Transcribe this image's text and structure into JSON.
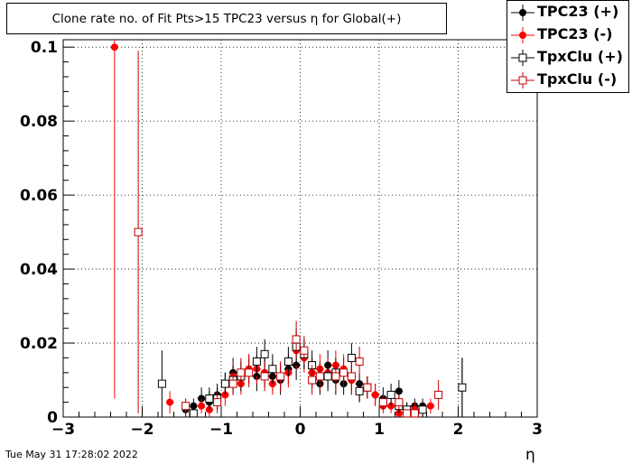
{
  "title": "Clone rate no. of Fit Pts>15 TPC23 versus η for Global(+)",
  "timestamp": "Tue May 31 17:28:02 2022",
  "legend": [
    {
      "label": "TPC23 (+)",
      "color": "#000000",
      "marker": "filled-circle"
    },
    {
      "label": "TPC23 (-)",
      "color": "#ff0000",
      "marker": "filled-circle"
    },
    {
      "label": "TpxClu (+)",
      "color": "#000000",
      "marker": "open-square"
    },
    {
      "label": "TpxClu (-)",
      "color": "#c00000",
      "marker": "open-square"
    }
  ],
  "chart_data": {
    "type": "scatter",
    "title": "Clone rate no. of Fit Pts>15 TPC23 versus η for Global(+)",
    "xlabel": "η",
    "ylabel": "",
    "xlim": [
      -3,
      3
    ],
    "ylim": [
      0,
      0.102
    ],
    "x_ticks": [
      -3,
      -2,
      -1,
      0,
      1,
      2,
      3
    ],
    "y_ticks": [
      0,
      0.02,
      0.04,
      0.06,
      0.08,
      0.1
    ],
    "grid": true,
    "legend_position": "top-right",
    "series": [
      {
        "name": "TPC23 (+)",
        "color": "#000000",
        "marker": "filled-circle",
        "points": [
          {
            "x": -1.45,
            "y": 0.002,
            "err": 0.002
          },
          {
            "x": -1.35,
            "y": 0.003,
            "err": 0.002
          },
          {
            "x": -1.25,
            "y": 0.005,
            "err": 0.003
          },
          {
            "x": -1.15,
            "y": 0.004,
            "err": 0.003
          },
          {
            "x": -1.05,
            "y": 0.006,
            "err": 0.003
          },
          {
            "x": -0.95,
            "y": 0.009,
            "err": 0.003
          },
          {
            "x": -0.85,
            "y": 0.012,
            "err": 0.004
          },
          {
            "x": -0.75,
            "y": 0.011,
            "err": 0.004
          },
          {
            "x": -0.65,
            "y": 0.013,
            "err": 0.004
          },
          {
            "x": -0.55,
            "y": 0.011,
            "err": 0.004
          },
          {
            "x": -0.45,
            "y": 0.012,
            "err": 0.004
          },
          {
            "x": -0.35,
            "y": 0.011,
            "err": 0.004
          },
          {
            "x": -0.25,
            "y": 0.01,
            "err": 0.004
          },
          {
            "x": -0.15,
            "y": 0.013,
            "err": 0.004
          },
          {
            "x": -0.05,
            "y": 0.014,
            "err": 0.004
          },
          {
            "x": 0.05,
            "y": 0.017,
            "err": 0.004
          },
          {
            "x": 0.15,
            "y": 0.012,
            "err": 0.004
          },
          {
            "x": 0.25,
            "y": 0.009,
            "err": 0.003
          },
          {
            "x": 0.35,
            "y": 0.014,
            "err": 0.004
          },
          {
            "x": 0.45,
            "y": 0.01,
            "err": 0.004
          },
          {
            "x": 0.55,
            "y": 0.009,
            "err": 0.003
          },
          {
            "x": 0.65,
            "y": 0.01,
            "err": 0.004
          },
          {
            "x": 0.75,
            "y": 0.009,
            "err": 0.003
          },
          {
            "x": 0.85,
            "y": 0.008,
            "err": 0.003
          },
          {
            "x": 0.95,
            "y": 0.006,
            "err": 0.003
          },
          {
            "x": 1.05,
            "y": 0.005,
            "err": 0.003
          },
          {
            "x": 1.25,
            "y": 0.007,
            "err": 0.003
          },
          {
            "x": 1.35,
            "y": 0.002,
            "err": 0.002
          },
          {
            "x": 1.45,
            "y": 0.003,
            "err": 0.002
          },
          {
            "x": 1.55,
            "y": 0.003,
            "err": 0.002
          },
          {
            "x": 2.05,
            "y": 0.008,
            "err": 0.008
          }
        ]
      },
      {
        "name": "TPC23 (-)",
        "color": "#ff0000",
        "marker": "filled-circle",
        "points": [
          {
            "x": -2.35,
            "y": 0.1,
            "err": 0.095
          },
          {
            "x": -1.65,
            "y": 0.004,
            "err": 0.003
          },
          {
            "x": -1.45,
            "y": 0.003,
            "err": 0.002
          },
          {
            "x": -1.35,
            "y": 0.001,
            "err": 0.001
          },
          {
            "x": -1.25,
            "y": 0.003,
            "err": 0.002
          },
          {
            "x": -1.15,
            "y": 0.002,
            "err": 0.002
          },
          {
            "x": -1.05,
            "y": 0.005,
            "err": 0.003
          },
          {
            "x": -0.95,
            "y": 0.006,
            "err": 0.003
          },
          {
            "x": -0.85,
            "y": 0.011,
            "err": 0.004
          },
          {
            "x": -0.75,
            "y": 0.009,
            "err": 0.003
          },
          {
            "x": -0.65,
            "y": 0.013,
            "err": 0.004
          },
          {
            "x": -0.55,
            "y": 0.013,
            "err": 0.004
          },
          {
            "x": -0.45,
            "y": 0.012,
            "err": 0.004
          },
          {
            "x": -0.35,
            "y": 0.009,
            "err": 0.003
          },
          {
            "x": -0.25,
            "y": 0.011,
            "err": 0.004
          },
          {
            "x": -0.15,
            "y": 0.012,
            "err": 0.004
          },
          {
            "x": -0.05,
            "y": 0.018,
            "err": 0.005
          },
          {
            "x": 0.05,
            "y": 0.016,
            "err": 0.004
          },
          {
            "x": 0.15,
            "y": 0.012,
            "err": 0.004
          },
          {
            "x": 0.25,
            "y": 0.013,
            "err": 0.004
          },
          {
            "x": 0.35,
            "y": 0.012,
            "err": 0.004
          },
          {
            "x": 0.45,
            "y": 0.014,
            "err": 0.004
          },
          {
            "x": 0.55,
            "y": 0.013,
            "err": 0.004
          },
          {
            "x": 0.65,
            "y": 0.01,
            "err": 0.004
          },
          {
            "x": 0.75,
            "y": 0.007,
            "err": 0.003
          },
          {
            "x": 0.85,
            "y": 0.008,
            "err": 0.003
          },
          {
            "x": 0.95,
            "y": 0.006,
            "err": 0.003
          },
          {
            "x": 1.05,
            "y": 0.003,
            "err": 0.002
          },
          {
            "x": 1.15,
            "y": 0.003,
            "err": 0.002
          },
          {
            "x": 1.25,
            "y": 0.001,
            "err": 0.001
          },
          {
            "x": 1.35,
            "y": 0.001,
            "err": 0.001
          },
          {
            "x": 1.45,
            "y": 0.002,
            "err": 0.002
          },
          {
            "x": 1.55,
            "y": 0.002,
            "err": 0.002
          },
          {
            "x": 1.65,
            "y": 0.003,
            "err": 0.002
          }
        ]
      },
      {
        "name": "TpxClu (+)",
        "color": "#000000",
        "marker": "open-square",
        "points": [
          {
            "x": -1.75,
            "y": 0.009,
            "err": 0.009
          },
          {
            "x": -1.35,
            "y": 0.001,
            "err": 0.001
          },
          {
            "x": -1.15,
            "y": 0.005,
            "err": 0.003
          },
          {
            "x": -1.05,
            "y": 0.005,
            "err": 0.003
          },
          {
            "x": -0.95,
            "y": 0.009,
            "err": 0.003
          },
          {
            "x": -0.85,
            "y": 0.01,
            "err": 0.004
          },
          {
            "x": -0.75,
            "y": 0.011,
            "err": 0.004
          },
          {
            "x": -0.55,
            "y": 0.015,
            "err": 0.004
          },
          {
            "x": -0.45,
            "y": 0.017,
            "err": 0.004
          },
          {
            "x": -0.35,
            "y": 0.013,
            "err": 0.004
          },
          {
            "x": -0.15,
            "y": 0.015,
            "err": 0.004
          },
          {
            "x": -0.05,
            "y": 0.019,
            "err": 0.005
          },
          {
            "x": 0.05,
            "y": 0.017,
            "err": 0.004
          },
          {
            "x": 0.15,
            "y": 0.014,
            "err": 0.004
          },
          {
            "x": 0.25,
            "y": 0.011,
            "err": 0.004
          },
          {
            "x": 0.35,
            "y": 0.011,
            "err": 0.004
          },
          {
            "x": 0.45,
            "y": 0.012,
            "err": 0.004
          },
          {
            "x": 0.65,
            "y": 0.016,
            "err": 0.004
          },
          {
            "x": 0.75,
            "y": 0.007,
            "err": 0.003
          },
          {
            "x": 0.85,
            "y": 0.008,
            "err": 0.003
          },
          {
            "x": 1.05,
            "y": 0.004,
            "err": 0.002
          },
          {
            "x": 1.15,
            "y": 0.006,
            "err": 0.003
          },
          {
            "x": 1.25,
            "y": 0.003,
            "err": 0.002
          },
          {
            "x": 1.35,
            "y": 0.002,
            "err": 0.002
          },
          {
            "x": 1.45,
            "y": 0.001,
            "err": 0.001
          },
          {
            "x": 1.55,
            "y": 0.002,
            "err": 0.002
          },
          {
            "x": 2.05,
            "y": 0.008,
            "err": 0.008
          }
        ]
      },
      {
        "name": "TpxClu (-)",
        "color": "#c00000",
        "marker": "open-square",
        "points": [
          {
            "x": -2.05,
            "y": 0.05,
            "err": 0.049
          },
          {
            "x": -1.45,
            "y": 0.003,
            "err": 0.002
          },
          {
            "x": -1.05,
            "y": 0.004,
            "err": 0.003
          },
          {
            "x": -0.85,
            "y": 0.009,
            "err": 0.003
          },
          {
            "x": -0.75,
            "y": 0.012,
            "err": 0.004
          },
          {
            "x": -0.65,
            "y": 0.012,
            "err": 0.004
          },
          {
            "x": -0.45,
            "y": 0.011,
            "err": 0.004
          },
          {
            "x": -0.25,
            "y": 0.011,
            "err": 0.004
          },
          {
            "x": -0.05,
            "y": 0.021,
            "err": 0.005
          },
          {
            "x": 0.05,
            "y": 0.018,
            "err": 0.004
          },
          {
            "x": 0.15,
            "y": 0.01,
            "err": 0.004
          },
          {
            "x": 0.25,
            "y": 0.011,
            "err": 0.004
          },
          {
            "x": 0.45,
            "y": 0.011,
            "err": 0.004
          },
          {
            "x": 0.55,
            "y": 0.012,
            "err": 0.004
          },
          {
            "x": 0.65,
            "y": 0.011,
            "err": 0.004
          },
          {
            "x": 0.75,
            "y": 0.015,
            "err": 0.004
          },
          {
            "x": 0.85,
            "y": 0.008,
            "err": 0.003
          },
          {
            "x": 1.05,
            "y": 0.004,
            "err": 0.002
          },
          {
            "x": 1.25,
            "y": 0.004,
            "err": 0.002
          },
          {
            "x": 1.35,
            "y": 0.001,
            "err": 0.001
          },
          {
            "x": 1.45,
            "y": 0.001,
            "err": 0.001
          },
          {
            "x": 1.75,
            "y": 0.006,
            "err": 0.004
          }
        ]
      }
    ]
  }
}
